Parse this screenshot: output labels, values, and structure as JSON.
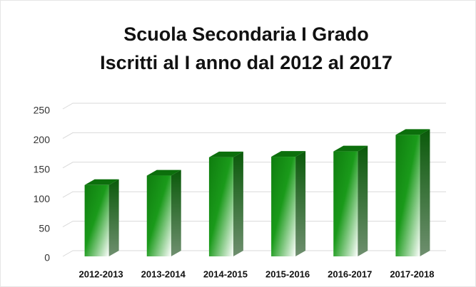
{
  "chart_data": {
    "type": "bar3d",
    "title": "Scuola Secondaria I Grado",
    "subtitle": "Iscritti al I anno dal 2012 al 2017",
    "categories": [
      "2012-2013",
      "2013-2014",
      "2014-2015",
      "2015-2016",
      "2016-2017",
      "2017-2018"
    ],
    "values": [
      121,
      137,
      168,
      169,
      178,
      206
    ],
    "color": "#118c11",
    "ylim": [
      0,
      250
    ],
    "yticks": [
      0,
      50,
      100,
      150,
      200,
      250
    ],
    "grid": true
  }
}
